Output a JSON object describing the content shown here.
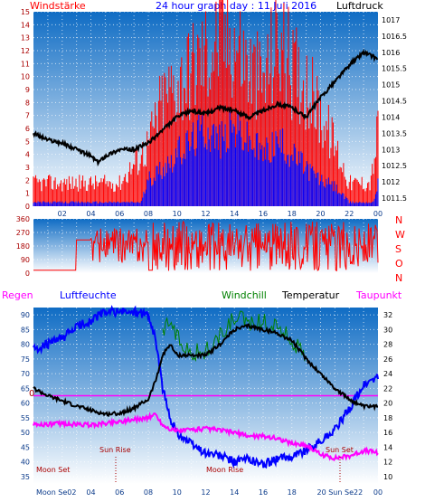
{
  "header": {
    "left_label": "Windstärke",
    "title": "24 hour graph day : 11 Juli 2016",
    "right_label": "Luftdruck"
  },
  "colors": {
    "bg": "#ffffff",
    "red": "#ff0000",
    "blue": "#0000ff",
    "green": "#008000",
    "black": "#000000",
    "magenta": "#ff00ff",
    "dark_red": "#aa0000",
    "navy": "#0a3a8a",
    "gradient_top": "#0f6cc4",
    "gradient_bottom": "#ffffff"
  },
  "chart_data": [
    {
      "type": "line",
      "name": "wind-pressure",
      "x_ticks": [
        "02",
        "04",
        "06",
        "08",
        "10",
        "12",
        "14",
        "16",
        "18",
        "20",
        "22",
        "00"
      ],
      "y_left_ticks": [
        0,
        1,
        2,
        3,
        4,
        5,
        6,
        7,
        8,
        9,
        10,
        11,
        12,
        13,
        14,
        15
      ],
      "y_right_ticks": [
        1011.5,
        1012,
        1012.5,
        1013,
        1013.5,
        1014,
        1014.5,
        1015,
        1015.5,
        1016,
        1016.5,
        1017
      ],
      "ylim_left": [
        0,
        15
      ],
      "ylim_right": [
        1011.25,
        1017.25
      ],
      "pressure": [
        [
          0,
          1013.5
        ],
        [
          1,
          1013.3
        ],
        [
          2,
          1013.2
        ],
        [
          3,
          1013.0
        ],
        [
          4,
          1012.8
        ],
        [
          4.5,
          1012.6
        ],
        [
          5,
          1012.8
        ],
        [
          6,
          1013.0
        ],
        [
          7,
          1013.0
        ],
        [
          8,
          1013.2
        ],
        [
          9,
          1013.6
        ],
        [
          10,
          1014.0
        ],
        [
          11,
          1014.2
        ],
        [
          12,
          1014.1
        ],
        [
          13,
          1014.3
        ],
        [
          14,
          1014.2
        ],
        [
          15,
          1014.0
        ],
        [
          16,
          1014.2
        ],
        [
          17,
          1014.4
        ],
        [
          18,
          1014.3
        ],
        [
          19,
          1014.0
        ],
        [
          20,
          1014.6
        ],
        [
          21,
          1015.1
        ],
        [
          22,
          1015.6
        ],
        [
          23,
          1016.0
        ],
        [
          24,
          1015.8
        ]
      ],
      "gust": [
        [
          0,
          1.5
        ],
        [
          6,
          1.5
        ],
        [
          8,
          4
        ],
        [
          9,
          7
        ],
        [
          10,
          8
        ],
        [
          11,
          9
        ],
        [
          12,
          10
        ],
        [
          13,
          11
        ],
        [
          14,
          11
        ],
        [
          15,
          9
        ],
        [
          16,
          8
        ],
        [
          17,
          11
        ],
        [
          18,
          9
        ],
        [
          19,
          8
        ],
        [
          20,
          6
        ],
        [
          21,
          4
        ],
        [
          22,
          1.5
        ],
        [
          23.5,
          1.5
        ],
        [
          24,
          5
        ]
      ],
      "wind_mean": [
        [
          0,
          0.3
        ],
        [
          7.5,
          0.3
        ],
        [
          8,
          2
        ],
        [
          9,
          3
        ],
        [
          10,
          4
        ],
        [
          11,
          5
        ],
        [
          12,
          6
        ],
        [
          13,
          5
        ],
        [
          14,
          6
        ],
        [
          15,
          5
        ],
        [
          16,
          4
        ],
        [
          17,
          5
        ],
        [
          18,
          4
        ],
        [
          19,
          3
        ],
        [
          20,
          2
        ],
        [
          21,
          1.5
        ],
        [
          22,
          0.3
        ],
        [
          23.7,
          0.3
        ],
        [
          24,
          2
        ]
      ]
    },
    {
      "type": "scatter",
      "name": "wind-direction",
      "y_ticks": [
        0,
        90,
        180,
        270,
        360
      ],
      "ylim": [
        0,
        360
      ],
      "compass": [
        "N",
        "W",
        "S",
        "O",
        "N"
      ]
    },
    {
      "type": "line",
      "name": "temperature-humidity",
      "legend": [
        "Regen",
        "Luftfeuchte",
        "Windchill",
        "Temperatur",
        "Taupunkt"
      ],
      "y_left_ticks": [
        35,
        40,
        45,
        50,
        55,
        60,
        65,
        70,
        75,
        80,
        85,
        90
      ],
      "y_right_ticks": [
        10,
        12,
        14,
        16,
        18,
        20,
        22,
        24,
        26,
        28,
        30,
        32
      ],
      "ylim_left": [
        32.5,
        92.5
      ],
      "ylim_right": [
        9,
        33
      ],
      "rain_label": "0",
      "annotations": [
        "Moon Set",
        "Sun Rise",
        "Moon Rise",
        "Sun Set"
      ],
      "x_tick_labels": [
        "Moon Se02",
        "04",
        "06",
        "08",
        "10",
        "12",
        "14",
        "16",
        "18",
        "20 Sun Se22",
        "00"
      ],
      "humidity": [
        [
          0,
          78
        ],
        [
          1,
          80
        ],
        [
          2,
          82
        ],
        [
          3,
          86
        ],
        [
          4,
          88
        ],
        [
          5,
          91
        ],
        [
          6,
          91
        ],
        [
          7,
          91
        ],
        [
          8,
          90
        ],
        [
          8.5,
          82
        ],
        [
          9,
          65
        ],
        [
          9.5,
          55
        ],
        [
          10,
          50
        ],
        [
          11,
          46
        ],
        [
          12,
          43
        ],
        [
          13,
          42
        ],
        [
          14,
          40
        ],
        [
          15,
          41
        ],
        [
          16,
          39
        ],
        [
          17,
          41
        ],
        [
          18,
          42
        ],
        [
          19,
          44
        ],
        [
          20,
          47
        ],
        [
          21,
          51
        ],
        [
          22,
          58
        ],
        [
          23,
          66
        ],
        [
          24,
          69
        ]
      ],
      "temperature": [
        [
          0,
          22
        ],
        [
          1,
          21
        ],
        [
          2,
          20.3
        ],
        [
          3,
          19.6
        ],
        [
          4,
          19
        ],
        [
          5,
          18.5
        ],
        [
          6,
          18.6
        ],
        [
          7,
          19.3
        ],
        [
          8,
          20.5
        ],
        [
          8.5,
          23
        ],
        [
          9,
          26.5
        ],
        [
          9.5,
          28
        ],
        [
          10,
          26.5
        ],
        [
          11,
          26.5
        ],
        [
          12,
          26.5
        ],
        [
          13,
          28
        ],
        [
          14,
          30
        ],
        [
          15,
          30.5
        ],
        [
          16,
          30
        ],
        [
          17,
          29.5
        ],
        [
          18,
          28.5
        ],
        [
          19,
          26
        ],
        [
          20,
          24
        ],
        [
          21,
          22
        ],
        [
          22,
          20.5
        ],
        [
          23,
          19.5
        ],
        [
          24,
          19.5
        ]
      ],
      "windchill": [
        [
          9,
          29.5
        ],
        [
          9.5,
          31.5
        ],
        [
          10,
          29
        ],
        [
          11,
          27
        ],
        [
          12,
          27
        ],
        [
          13,
          29
        ],
        [
          14,
          31.5
        ],
        [
          15,
          31
        ],
        [
          16,
          31
        ],
        [
          17,
          30.5
        ],
        [
          18,
          28.5
        ],
        [
          19,
          26
        ]
      ],
      "dewpoint": [
        [
          0,
          17
        ],
        [
          2,
          17.2
        ],
        [
          4,
          17
        ],
        [
          6,
          17.5
        ],
        [
          8,
          18
        ],
        [
          8.5,
          18.5
        ],
        [
          9,
          17
        ],
        [
          9.5,
          16.5
        ],
        [
          10,
          16.2
        ],
        [
          11,
          16.4
        ],
        [
          12,
          16.5
        ],
        [
          13,
          16.3
        ],
        [
          14,
          16
        ],
        [
          15,
          15.5
        ],
        [
          16,
          15.5
        ],
        [
          17,
          15.2
        ],
        [
          18,
          14.5
        ],
        [
          19,
          14.3
        ],
        [
          20,
          13
        ],
        [
          21,
          12.5
        ],
        [
          22,
          12.8
        ],
        [
          23,
          13.5
        ],
        [
          24,
          13.3
        ]
      ],
      "rain_level": 21
    }
  ]
}
